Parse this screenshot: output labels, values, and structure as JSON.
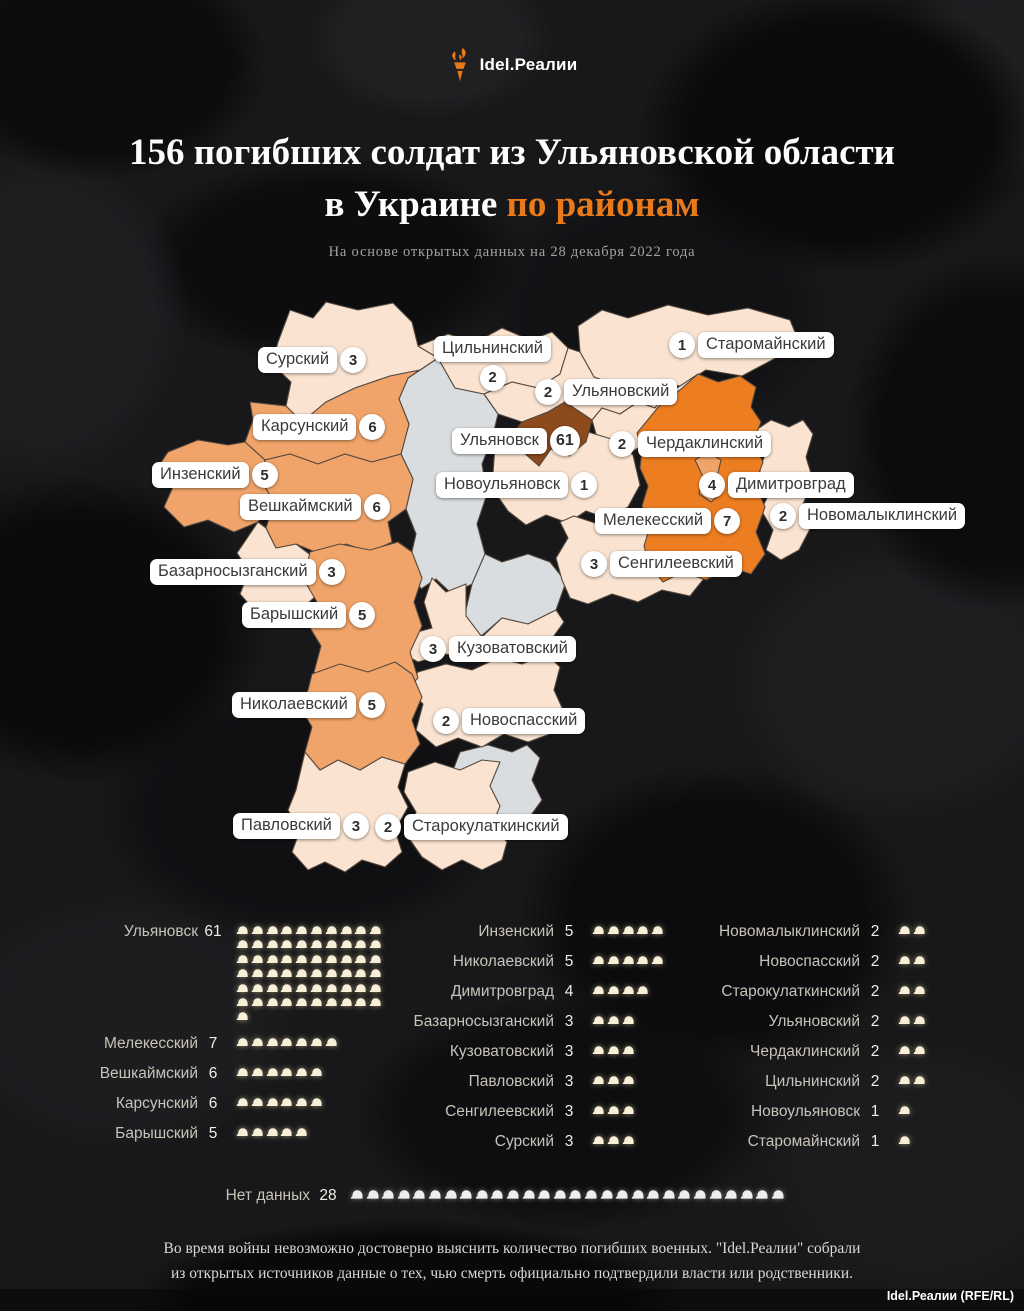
{
  "logo": {
    "brand": "Idel.Реалии"
  },
  "header": {
    "title_line1": "156 погибших солдат из Ульяновской области",
    "title_line2_prefix": "в Украине ",
    "title_line2_accent": "по районам",
    "subtitle": "На основе открытых данных на 28 декабря 2022 года"
  },
  "colors": {
    "accent": "#e87a1c",
    "low": "#fae3d0",
    "mid": "#f1a469",
    "high": "#ed7d21",
    "city": "#8c4a1d",
    "nodata": "#d9dddf",
    "helmet": "#f7efd8",
    "helmet_white": "#eeeeec"
  },
  "chart_data": {
    "type": "choropleth_map_with_pictogram",
    "title": "156 погибших солдат из Ульяновской области в Украине по районам",
    "total": 156,
    "as_of": "28 декабря 2022 года",
    "unit": "погибшие солдаты (1 каска = 1 человек)",
    "districts": [
      {
        "name": "Ульяновск",
        "value": 61
      },
      {
        "name": "Мелекесский",
        "value": 7
      },
      {
        "name": "Вешкаймский",
        "value": 6
      },
      {
        "name": "Карсунский",
        "value": 6
      },
      {
        "name": "Барышский",
        "value": 5
      },
      {
        "name": "Инзенский",
        "value": 5
      },
      {
        "name": "Николаевский",
        "value": 5
      },
      {
        "name": "Димитровград",
        "value": 4
      },
      {
        "name": "Базарносызганский",
        "value": 3
      },
      {
        "name": "Кузоватовский",
        "value": 3
      },
      {
        "name": "Павловский",
        "value": 3
      },
      {
        "name": "Сенгилеевский",
        "value": 3
      },
      {
        "name": "Сурский",
        "value": 3
      },
      {
        "name": "Новомалыклинский",
        "value": 2
      },
      {
        "name": "Новоспасский",
        "value": 2
      },
      {
        "name": "Старокулаткинский",
        "value": 2
      },
      {
        "name": "Ульяновский",
        "value": 2
      },
      {
        "name": "Чердаклинский",
        "value": 2
      },
      {
        "name": "Цильнинский",
        "value": 2
      },
      {
        "name": "Новоульяновск",
        "value": 1
      },
      {
        "name": "Старомайнский",
        "value": 1
      },
      {
        "name": "Нет данных",
        "value": 28
      }
    ]
  },
  "map": {
    "labels": [
      {
        "id": "surskiy",
        "name": "Сурский",
        "value": "3",
        "side": "right"
      },
      {
        "id": "tsilninskiy",
        "name": "Цильнинский",
        "value": "2",
        "side": "below"
      },
      {
        "id": "staromainskiy",
        "name": "Старомайнский",
        "value": "1",
        "side": "left"
      },
      {
        "id": "ulyanovskiy",
        "name": "Ульяновский",
        "value": "2",
        "side": "left"
      },
      {
        "id": "karsunskiy",
        "name": "Карсунский",
        "value": "6",
        "side": "right"
      },
      {
        "id": "ulyanovsk-city",
        "name": "Ульяновск",
        "value": "61",
        "side": "right"
      },
      {
        "id": "cherdaklinskiy",
        "name": "Чердаклинский",
        "value": "2",
        "side": "left"
      },
      {
        "id": "inzenskiy",
        "name": "Инзенский",
        "value": "5",
        "side": "right"
      },
      {
        "id": "novoulyanovsk",
        "name": "Новоульяновск",
        "value": "1",
        "side": "right"
      },
      {
        "id": "dimitrovgrad",
        "name": "Димитровград",
        "value": "4",
        "side": "left"
      },
      {
        "id": "veshkaymskiy",
        "name": "Вешкаймский",
        "value": "6",
        "side": "right"
      },
      {
        "id": "melekesskiy",
        "name": "Мелекесский",
        "value": "7",
        "side": "right"
      },
      {
        "id": "novomalyklinskiy",
        "name": "Новомалыклинский",
        "value": "2",
        "side": "left"
      },
      {
        "id": "bazarnosyzganskiy",
        "name": "Базарносызганский",
        "value": "3",
        "side": "right"
      },
      {
        "id": "sengileevskiy",
        "name": "Сенгилеевский",
        "value": "3",
        "side": "left"
      },
      {
        "id": "baryshskiy",
        "name": "Барышский",
        "value": "5",
        "side": "right"
      },
      {
        "id": "kuzovatovskiy",
        "name": "Кузоватовский",
        "value": "3",
        "side": "left"
      },
      {
        "id": "nikolaevskiy",
        "name": "Николаевский",
        "value": "5",
        "side": "right"
      },
      {
        "id": "novospasskiy",
        "name": "Новоспасский",
        "value": "2",
        "side": "left"
      },
      {
        "id": "pavlovskiy",
        "name": "Павловский",
        "value": "3",
        "side": "right"
      },
      {
        "id": "starokulatkinskiy",
        "name": "Старокулаткинский",
        "value": "2",
        "side": "left"
      }
    ]
  },
  "legend": {
    "columns": [
      [
        {
          "name": "Ульяновск",
          "value": 61
        },
        {
          "name": "Мелекесский",
          "value": 7
        },
        {
          "name": "Вешкаймский",
          "value": 6
        },
        {
          "name": "Карсунский",
          "value": 6
        },
        {
          "name": "Барышский",
          "value": 5
        }
      ],
      [
        {
          "name": "Инзенский",
          "value": 5
        },
        {
          "name": "Николаевский",
          "value": 5
        },
        {
          "name": "Димитровград",
          "value": 4
        },
        {
          "name": "Базарносызганский",
          "value": 3
        },
        {
          "name": "Кузоватовский",
          "value": 3
        },
        {
          "name": "Павловский",
          "value": 3
        },
        {
          "name": "Сенгилеевский",
          "value": 3
        },
        {
          "name": "Сурский",
          "value": 3
        }
      ],
      [
        {
          "name": "Новомалыклинский",
          "value": 2
        },
        {
          "name": "Новоспасский",
          "value": 2
        },
        {
          "name": "Старокулаткинский",
          "value": 2
        },
        {
          "name": "Ульяновский",
          "value": 2
        },
        {
          "name": "Чердаклинский",
          "value": 2
        },
        {
          "name": "Цильнинский",
          "value": 2
        },
        {
          "name": "Новоульяновск",
          "value": 1
        },
        {
          "name": "Старомайнский",
          "value": 1
        }
      ]
    ],
    "no_data_label": "Нет данных",
    "no_data_value": 28
  },
  "footer": {
    "line1": "Во время войны невозможно достоверно выяснить количество погибших военных. \"Idel.Реалии\" собрали",
    "line2": "из открытых источников данные о тех, чью смерть официально подтвердили власти или родственники.",
    "credit": "Idel.Реалии (RFE/RL)"
  }
}
